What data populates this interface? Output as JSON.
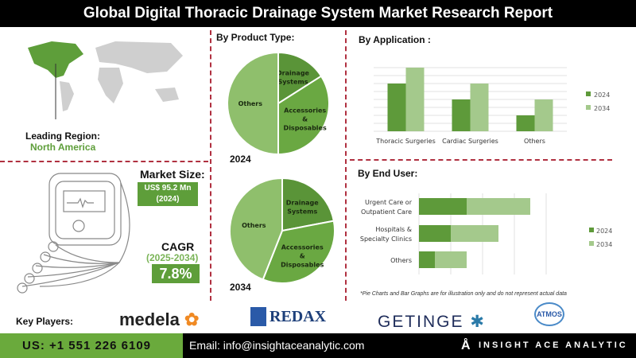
{
  "title": "Global Digital Thoracic Drainage System Market Research Report",
  "region": {
    "label": "Leading Region:",
    "value": "North America"
  },
  "market_size": {
    "label": "Market Size:",
    "value": "US$ 95.2 Mn",
    "year": "(2024)"
  },
  "cagr": {
    "label": "CAGR",
    "period": "(2025-2034)",
    "value": "7.8%"
  },
  "key_players": {
    "label": "Key Players:",
    "logos": [
      "medela",
      "REDAX",
      "GETINGE",
      "ATMOS"
    ]
  },
  "footer": {
    "phone": "US: +1 551 226 6109",
    "email": "Email: info@insightaceanalytic.com",
    "brand": "INSIGHT ACE ANALYTIC"
  },
  "note": "*Pie Charts and Bar Graphs are for illustration only and do not represent actual data",
  "colors": {
    "dark_green": "#5e9a3a",
    "light_green": "#a4c98c",
    "pie_dark": "#5a9438",
    "pie_mid": "#6aa842",
    "pie_light": "#8fbf6c",
    "accent_red": "#b03040"
  },
  "chart_data": [
    {
      "type": "pie",
      "title": "By Product Type:",
      "year_label": "2024",
      "labels": [
        "Drainage Systems",
        "Accessories & Disposables",
        "Others"
      ],
      "values": [
        16,
        34,
        50
      ]
    },
    {
      "type": "pie",
      "year_label": "2034",
      "labels": [
        "Drainage Systems",
        "Accessories & Disposables",
        "Others"
      ],
      "values": [
        22,
        34,
        44
      ]
    },
    {
      "type": "bar",
      "title": "By Application :",
      "categories": [
        "Thoracic Surgeries",
        "Cardiac Surgeries",
        "Others"
      ],
      "series": [
        {
          "name": "2024",
          "values": [
            6,
            4,
            2
          ]
        },
        {
          "name": "2034",
          "values": [
            8,
            6,
            4
          ]
        }
      ],
      "ylim": [
        0,
        8
      ],
      "grid": true,
      "legend": "right"
    },
    {
      "type": "bar",
      "orientation": "horizontal",
      "stacked": true,
      "title": "By End User:",
      "categories": [
        "Urgent Care or Outpatient Care",
        "Hospitals & Specialty Clinics",
        "Others"
      ],
      "series": [
        {
          "name": "2024",
          "values": [
            1.5,
            1,
            0.5
          ]
        },
        {
          "name": "2034",
          "values": [
            2,
            1.5,
            1
          ]
        }
      ],
      "xlim": [
        0,
        4
      ],
      "grid": true,
      "legend": "right"
    }
  ]
}
